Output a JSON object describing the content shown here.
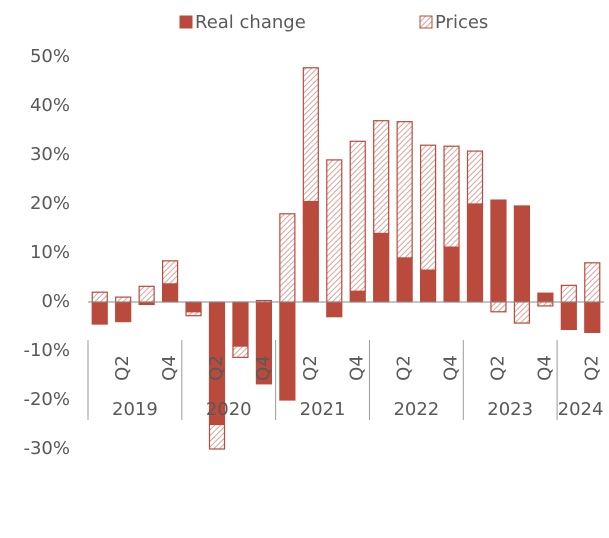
{
  "chart_data": {
    "type": "bar",
    "stacked": true,
    "categories": [
      null,
      "Q2",
      null,
      "Q4",
      null,
      "Q2",
      null,
      "Q4",
      null,
      "Q2",
      null,
      "Q4",
      null,
      "Q2",
      null,
      "Q4",
      null,
      "Q2",
      null,
      "Q4",
      null,
      "Q2"
    ],
    "years": [
      "2019",
      "2020",
      "2021",
      "2022",
      "2023",
      "2024"
    ],
    "series": [
      {
        "name": "Real change",
        "color": "#b94a3c",
        "pattern": "solid",
        "values": [
          -4.5,
          -4,
          -0.5,
          3.7,
          -2,
          -25,
          -9,
          -16.7,
          -20,
          20.5,
          -3,
          2.2,
          14,
          9,
          6.5,
          11.2,
          20,
          20.8,
          19.6,
          1.8,
          -5.6,
          -6.2
        ]
      },
      {
        "name": "Prices",
        "color": "#b94a3c",
        "pattern": "hatched",
        "values": [
          2,
          1,
          3.2,
          4.7,
          -0.8,
          -5,
          -2.3,
          0.3,
          18,
          27.3,
          29,
          30.6,
          23,
          27.8,
          25.5,
          20.6,
          10.8,
          -2,
          -4.3,
          -0.8,
          3.4,
          8
        ]
      }
    ],
    "ylim": [
      -30,
      50
    ],
    "yticks": [
      {
        "value": -30,
        "label": "-30%"
      },
      {
        "value": -20,
        "label": "-20%"
      },
      {
        "value": -10,
        "label": "-10%"
      },
      {
        "value": 0,
        "label": "0%"
      },
      {
        "value": 10,
        "label": "10%"
      },
      {
        "value": 20,
        "label": "20%"
      },
      {
        "value": 30,
        "label": "30%"
      },
      {
        "value": 40,
        "label": "40%"
      },
      {
        "value": 50,
        "label": "50%"
      }
    ],
    "legend": "top"
  }
}
